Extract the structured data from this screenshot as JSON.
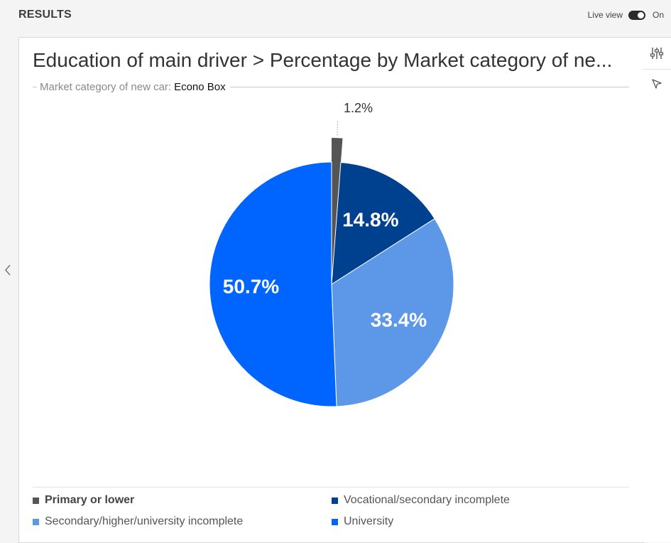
{
  "header": {
    "title": "RESULTS",
    "live_view_label": "Live view",
    "live_view_state": "On"
  },
  "panel": {
    "title": "Education of main driver > Percentage by Market category of ne...",
    "filter_label": "Market category of new car:",
    "filter_value": "Econo Box"
  },
  "rail": {
    "icons": [
      "settings-sliders-icon",
      "pointer-icon"
    ]
  },
  "chart_data": {
    "type": "pie",
    "title": "Education of main driver > Percentage by Market category of ne...",
    "subtitle": "Market category of new car: Econo Box",
    "legend_position": "bottom",
    "slices": [
      {
        "name": "Primary or lower",
        "value": 1.2,
        "label": "1.2%",
        "color": "#555555"
      },
      {
        "name": "Vocational/secondary incomplete",
        "value": 14.8,
        "label": "14.8%",
        "color": "#00418f"
      },
      {
        "name": "Secondary/higher/university incomplete",
        "value": 33.4,
        "label": "33.4%",
        "color": "#5d97e8"
      },
      {
        "name": "University",
        "value": 50.7,
        "label": "50.7%",
        "color": "#0064ff"
      }
    ]
  }
}
